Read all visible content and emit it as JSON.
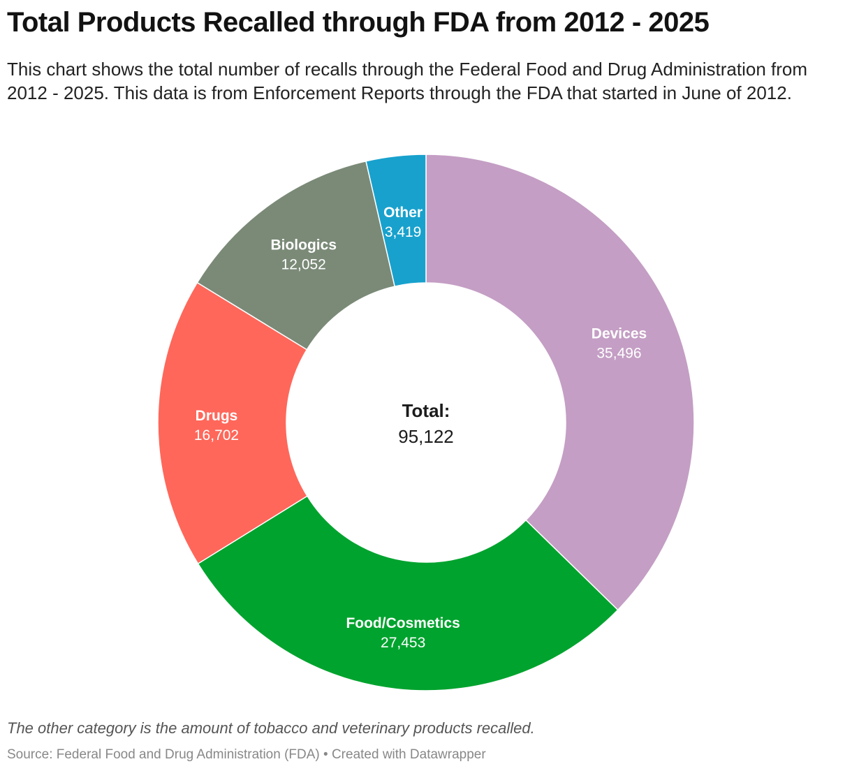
{
  "chart_data": {
    "type": "pie",
    "variant": "donut",
    "title": "Total Products Recalled through FDA from 2012 - 2025",
    "subtitle": "This chart shows the total number of recalls through the Federal Food and Drug Administration from 2012 - 2025. This data is from Enforcement Reports through the FDA that started in June of 2012.",
    "center_label": "Total:",
    "center_value": "95,122",
    "slices": [
      {
        "label": "Devices",
        "value": 35496,
        "value_label": "35,496",
        "color": "#c49ec4"
      },
      {
        "label": "Food/Cosmetics",
        "value": 27453,
        "value_label": "27,453",
        "color": "#00a32e"
      },
      {
        "label": "Drugs",
        "value": 16702,
        "value_label": "16,702",
        "color": "#ff675a"
      },
      {
        "label": "Biologics",
        "value": 12052,
        "value_label": "12,052",
        "color": "#7a8a77"
      },
      {
        "label": "Other",
        "value": 3419,
        "value_label": "3,419",
        "color": "#18a1cd"
      }
    ],
    "note": "The other category is the amount of tobacco and veterinary products recalled.",
    "source": "Source: Federal Food and Drug Administration (FDA) • Created with Datawrapper"
  }
}
